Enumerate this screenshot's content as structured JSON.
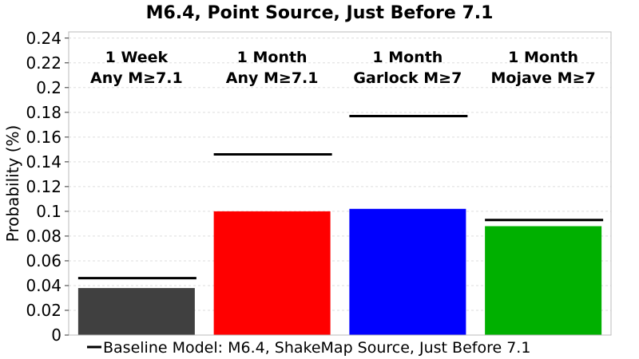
{
  "chart_data": {
    "type": "bar",
    "title": "M6.4, Point Source, Just Before 7.1",
    "xlabel": "",
    "ylabel": "Probability (%)",
    "ylim": [
      0,
      0.245
    ],
    "yticks": [
      "0",
      "0.02",
      "0.04",
      "0.06",
      "0.08",
      "0.1",
      "0.12",
      "0.14",
      "0.16",
      "0.18",
      "0.2",
      "0.22",
      "0.24"
    ],
    "grid": true,
    "legend_placement": "bottom",
    "categories": [
      {
        "line1": "1 Week",
        "line2": "Any M≥7.1"
      },
      {
        "line1": "1 Month",
        "line2": "Any M≥7.1"
      },
      {
        "line1": "1 Month",
        "line2": "Garlock M≥7"
      },
      {
        "line1": "1 Month",
        "line2": "Mojave M≥7"
      }
    ],
    "values": [
      0.038,
      0.1,
      0.102,
      0.088
    ],
    "colors": [
      "#404040",
      "#ff0000",
      "#0000ff",
      "#00b000"
    ],
    "series": [
      {
        "name": "Baseline Model: M6.4, ShakeMap Source, Just Before 7.1",
        "values": [
          0.046,
          0.146,
          0.177,
          0.093
        ],
        "color": "#000000"
      }
    ]
  }
}
